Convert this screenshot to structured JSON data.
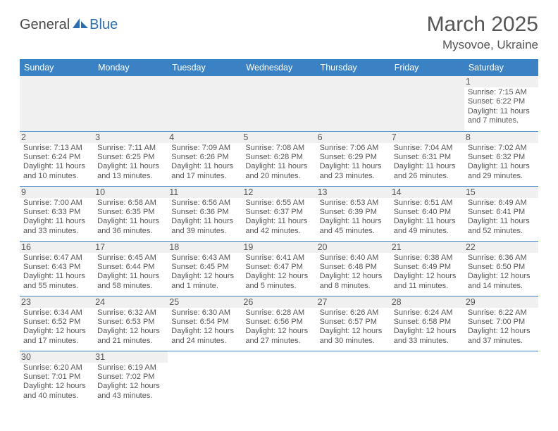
{
  "logo": {
    "part1": "General",
    "part2": "Blue"
  },
  "title": "March 2025",
  "location": "Mysovoe, Ukraine",
  "colors": {
    "header_bg": "#3b82c4",
    "header_fg": "#ffffff",
    "cell_border": "#3b82c4",
    "daynum_bg": "#f0f0f0",
    "text": "#555555",
    "logo_accent": "#2b6fb0"
  },
  "weekdays": [
    "Sunday",
    "Monday",
    "Tuesday",
    "Wednesday",
    "Thursday",
    "Friday",
    "Saturday"
  ],
  "weeks": [
    [
      null,
      null,
      null,
      null,
      null,
      null,
      {
        "n": "1",
        "sr": "7:15 AM",
        "ss": "6:22 PM",
        "dh": "11",
        "dm": "7"
      }
    ],
    [
      {
        "n": "2",
        "sr": "7:13 AM",
        "ss": "6:24 PM",
        "dh": "11",
        "dm": "10"
      },
      {
        "n": "3",
        "sr": "7:11 AM",
        "ss": "6:25 PM",
        "dh": "11",
        "dm": "13"
      },
      {
        "n": "4",
        "sr": "7:09 AM",
        "ss": "6:26 PM",
        "dh": "11",
        "dm": "17"
      },
      {
        "n": "5",
        "sr": "7:08 AM",
        "ss": "6:28 PM",
        "dh": "11",
        "dm": "20"
      },
      {
        "n": "6",
        "sr": "7:06 AM",
        "ss": "6:29 PM",
        "dh": "11",
        "dm": "23"
      },
      {
        "n": "7",
        "sr": "7:04 AM",
        "ss": "6:31 PM",
        "dh": "11",
        "dm": "26"
      },
      {
        "n": "8",
        "sr": "7:02 AM",
        "ss": "6:32 PM",
        "dh": "11",
        "dm": "29"
      }
    ],
    [
      {
        "n": "9",
        "sr": "7:00 AM",
        "ss": "6:33 PM",
        "dh": "11",
        "dm": "33"
      },
      {
        "n": "10",
        "sr": "6:58 AM",
        "ss": "6:35 PM",
        "dh": "11",
        "dm": "36"
      },
      {
        "n": "11",
        "sr": "6:56 AM",
        "ss": "6:36 PM",
        "dh": "11",
        "dm": "39"
      },
      {
        "n": "12",
        "sr": "6:55 AM",
        "ss": "6:37 PM",
        "dh": "11",
        "dm": "42"
      },
      {
        "n": "13",
        "sr": "6:53 AM",
        "ss": "6:39 PM",
        "dh": "11",
        "dm": "45"
      },
      {
        "n": "14",
        "sr": "6:51 AM",
        "ss": "6:40 PM",
        "dh": "11",
        "dm": "49"
      },
      {
        "n": "15",
        "sr": "6:49 AM",
        "ss": "6:41 PM",
        "dh": "11",
        "dm": "52"
      }
    ],
    [
      {
        "n": "16",
        "sr": "6:47 AM",
        "ss": "6:43 PM",
        "dh": "11",
        "dm": "55"
      },
      {
        "n": "17",
        "sr": "6:45 AM",
        "ss": "6:44 PM",
        "dh": "11",
        "dm": "58"
      },
      {
        "n": "18",
        "sr": "6:43 AM",
        "ss": "6:45 PM",
        "dh": "12",
        "dm": "1",
        "singular": true
      },
      {
        "n": "19",
        "sr": "6:41 AM",
        "ss": "6:47 PM",
        "dh": "12",
        "dm": "5"
      },
      {
        "n": "20",
        "sr": "6:40 AM",
        "ss": "6:48 PM",
        "dh": "12",
        "dm": "8"
      },
      {
        "n": "21",
        "sr": "6:38 AM",
        "ss": "6:49 PM",
        "dh": "12",
        "dm": "11"
      },
      {
        "n": "22",
        "sr": "6:36 AM",
        "ss": "6:50 PM",
        "dh": "12",
        "dm": "14"
      }
    ],
    [
      {
        "n": "23",
        "sr": "6:34 AM",
        "ss": "6:52 PM",
        "dh": "12",
        "dm": "17"
      },
      {
        "n": "24",
        "sr": "6:32 AM",
        "ss": "6:53 PM",
        "dh": "12",
        "dm": "21"
      },
      {
        "n": "25",
        "sr": "6:30 AM",
        "ss": "6:54 PM",
        "dh": "12",
        "dm": "24"
      },
      {
        "n": "26",
        "sr": "6:28 AM",
        "ss": "6:56 PM",
        "dh": "12",
        "dm": "27"
      },
      {
        "n": "27",
        "sr": "6:26 AM",
        "ss": "6:57 PM",
        "dh": "12",
        "dm": "30"
      },
      {
        "n": "28",
        "sr": "6:24 AM",
        "ss": "6:58 PM",
        "dh": "12",
        "dm": "33"
      },
      {
        "n": "29",
        "sr": "6:22 AM",
        "ss": "7:00 PM",
        "dh": "12",
        "dm": "37"
      }
    ],
    [
      {
        "n": "30",
        "sr": "6:20 AM",
        "ss": "7:01 PM",
        "dh": "12",
        "dm": "40"
      },
      {
        "n": "31",
        "sr": "6:19 AM",
        "ss": "7:02 PM",
        "dh": "12",
        "dm": "43"
      },
      null,
      null,
      null,
      null,
      null
    ]
  ],
  "labels": {
    "sunrise": "Sunrise:",
    "sunset": "Sunset:",
    "daylight": "Daylight:",
    "hours": "hours",
    "and": "and",
    "minute": "minute.",
    "minutes": "minutes."
  }
}
